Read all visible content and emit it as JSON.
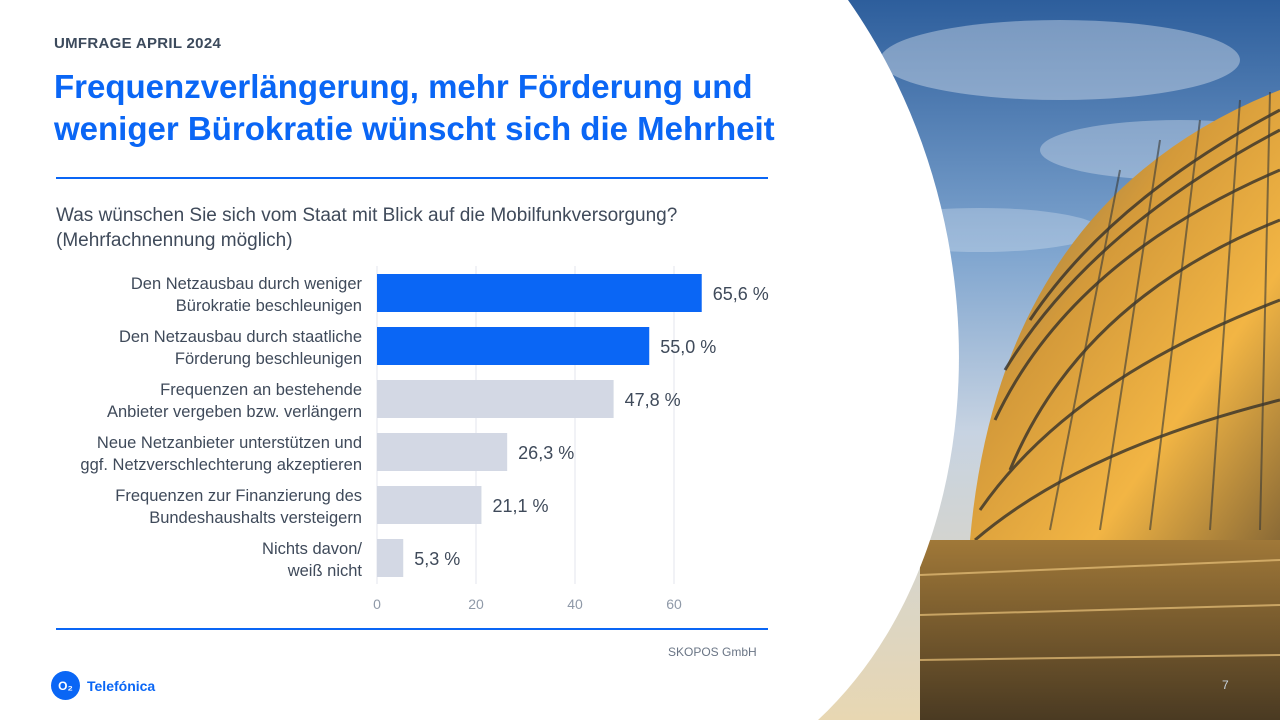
{
  "header": {
    "eyebrow": "UMFRAGE  APRIL  2024",
    "title_line1": "Frequenzverlängerung, mehr Förderung und",
    "title_line2": "weniger Bürokratie wünscht sich die Mehrheit"
  },
  "question": {
    "line1": "Was wünschen Sie sich vom Staat mit Blick auf die Mobilfunkversorgung?",
    "line2": "(Mehrfachnennung  möglich)"
  },
  "chart_data": {
    "type": "bar",
    "orientation": "horizontal",
    "categories": [
      [
        "Den Netzausbau durch weniger",
        "Bürokratie beschleunigen"
      ],
      [
        "Den Netzausbau durch staatliche",
        "Förderung beschleunigen"
      ],
      [
        "Frequenzen an bestehende",
        "Anbieter vergeben bzw. verlängern"
      ],
      [
        "Neue Netzanbieter unterstützen und",
        "ggf. Netzverschlechterung akzeptieren"
      ],
      [
        "Frequenzen zur Finanzierung des",
        "Bundeshaushalts versteigern"
      ],
      [
        "Nichts davon/",
        "weiß nicht"
      ]
    ],
    "values": [
      65.6,
      55.0,
      47.8,
      26.3,
      21.1,
      5.3
    ],
    "value_labels": [
      "65,6 %",
      "55,0 %",
      "47,8 %",
      "26,3 %",
      "21,1 %",
      "5,3 %"
    ],
    "highlight": [
      true,
      true,
      false,
      false,
      false,
      false
    ],
    "xlim": [
      0,
      78
    ],
    "xticks": [
      0,
      20,
      40,
      60
    ],
    "xtick_labels": [
      "0",
      "20",
      "40",
      "60"
    ],
    "grid": true,
    "colors": {
      "highlight": "#0a66f5",
      "default": "#d3d8e4",
      "grid": "#e3e6ee",
      "label": "#3f4a5a",
      "tick": "#8f99a8"
    }
  },
  "footer": {
    "source": "SKOPOS GmbH",
    "brand_mark": "O₂",
    "brand_name": "Telefónica",
    "page_number": "7"
  }
}
